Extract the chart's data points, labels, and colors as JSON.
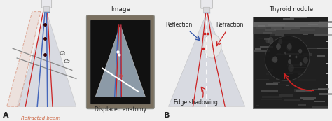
{
  "bg_color": "#f0f0f0",
  "panel_a_label": "A",
  "panel_b_label": "B",
  "label_image": "Image",
  "label_displaced": "Displaced anatomy",
  "label_refracted": "Refracted beam",
  "label_c1": "C₁",
  "label_c2": "C₂",
  "label_reflection": "Reflection",
  "label_refraction": "Refraction",
  "label_edge": "Edge shadowing",
  "label_thyroid": "Thyroid nodule",
  "beam_blue": "#4466bb",
  "beam_red": "#cc2222",
  "beam_light_blue": "#8899cc",
  "refracted_fill": "#e8d0c8",
  "refracted_stroke": "#cc6644",
  "fan_fill_a": "#c5c9d5",
  "fan_fill_b": "#c8ccd8",
  "image_box_bg": "#7a7060",
  "image_box_inner": "#111111",
  "image_fan_fill": "#9aaab8",
  "nodule_color": "#e8e8e8",
  "dashed_color": "#ffffff",
  "arrow_blue": "#3355aa",
  "arrow_red": "#cc2222",
  "probe_body": "#e8e8ec",
  "probe_neck": "#d8d8dc",
  "probe_edge": "#bbbbbb",
  "c_line_color": "#888888",
  "dot_color": "#330000",
  "text_dark": "#222222",
  "text_label": "#555555"
}
